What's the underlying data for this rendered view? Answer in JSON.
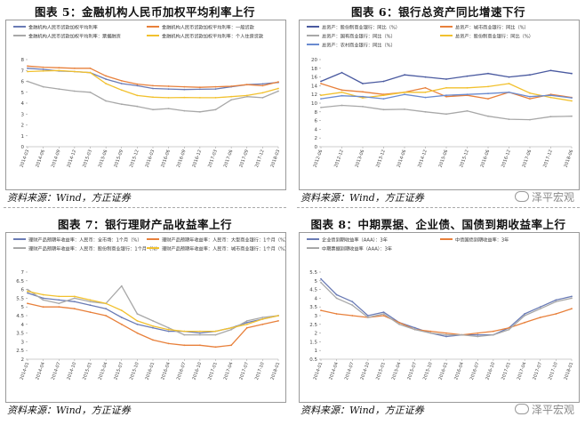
{
  "source_label": "资料来源：Wind，方正证券",
  "watermark": "泽平宏观",
  "chart_data": [
    {
      "type": "line",
      "title": "图表 5：金融机构人民币加权平均利率上行",
      "ylim": [
        0,
        8
      ],
      "yticks": [
        0,
        1,
        2,
        3,
        4,
        5,
        6,
        7,
        8
      ],
      "x": [
        "2014-03",
        "2014-06",
        "2014-09",
        "2014-12",
        "2015-03",
        "2015-06",
        "2015-09",
        "2015-12",
        "2016-03",
        "2016-06",
        "2016-09",
        "2016-12",
        "2017-03",
        "2017-06",
        "2017-09",
        "2017-12",
        "2018-03"
      ],
      "legend_position": "top",
      "grid": false,
      "series": [
        {
          "name": "金融机构人民币贷款加权平均利率",
          "color": "#6a7bb5",
          "values": [
            7.2,
            7.1,
            6.95,
            6.9,
            6.8,
            6.2,
            5.8,
            5.6,
            5.35,
            5.3,
            5.25,
            5.27,
            5.3,
            5.5,
            5.7,
            5.76,
            5.9
          ]
        },
        {
          "name": "金融机构人民币贷款加权平均利率：一般贷款",
          "color": "#e8803b",
          "values": [
            7.4,
            7.3,
            7.25,
            7.2,
            7.2,
            6.5,
            6.05,
            5.75,
            5.6,
            5.55,
            5.5,
            5.45,
            5.5,
            5.55,
            5.7,
            5.6,
            5.95
          ]
        },
        {
          "name": "金融机构人民币贷款加权平均利率：票据融资",
          "color": "#a8a8a8",
          "values": [
            6.0,
            5.5,
            5.3,
            5.1,
            5.0,
            4.2,
            3.9,
            3.7,
            3.4,
            3.5,
            3.3,
            3.2,
            3.4,
            4.3,
            4.6,
            4.5,
            5.1
          ]
        },
        {
          "name": "金融机构人民币贷款加权平均利率：个人住房贷款",
          "color": "#f2c12e",
          "values": [
            6.9,
            6.95,
            7.0,
            6.9,
            6.8,
            5.8,
            5.2,
            4.7,
            4.55,
            4.5,
            4.52,
            4.5,
            4.5,
            4.6,
            4.7,
            4.95,
            5.35
          ]
        }
      ]
    },
    {
      "type": "line",
      "title": "图表 6：银行总资产同比增速下行",
      "ylim": [
        0,
        20
      ],
      "yticks": [
        0,
        2,
        4,
        6,
        8,
        10,
        12,
        14,
        16,
        18,
        20
      ],
      "x": [
        "2012-06",
        "2012-12",
        "2013-06",
        "2013-12",
        "2014-06",
        "2014-12",
        "2015-06",
        "2015-12",
        "2016-06",
        "2016-12",
        "2017-06",
        "2017-12",
        "2018-06"
      ],
      "legend_position": "top",
      "grid": false,
      "series": [
        {
          "name": "总资产：股份制商业银行：同比（%）",
          "color": "#4a5aa0",
          "values": [
            15.0,
            17.0,
            14.5,
            15.0,
            16.5,
            16.0,
            15.5,
            16.2,
            16.8,
            16.0,
            16.5,
            17.5,
            16.8
          ]
        },
        {
          "name": "总资产：城市商业银行：同比（%）",
          "color": "#e8803b",
          "values": [
            14.5,
            13.0,
            12.6,
            12.0,
            12.5,
            13.5,
            11.5,
            11.8,
            11.0,
            12.5,
            11.0,
            12.0,
            11.3
          ]
        },
        {
          "name": "总资产：国有商业银行：同比（%）",
          "color": "#a8a8a8",
          "values": [
            9.0,
            9.5,
            9.2,
            8.5,
            8.6,
            8.0,
            7.5,
            8.2,
            7.0,
            6.3,
            6.2,
            6.9,
            7.0
          ]
        },
        {
          "name": "总资产：股份制商业银行：同比（%）",
          "color": "#f2c12e",
          "values": [
            11.8,
            12.5,
            11.2,
            11.8,
            12.5,
            12.5,
            13.5,
            13.5,
            13.8,
            14.5,
            12.3,
            11.3,
            10.5
          ]
        },
        {
          "name": "总资产：农村商业银行：同比（%）",
          "color": "#6a8bd0",
          "values": [
            11.0,
            11.7,
            11.5,
            11.0,
            12.0,
            11.3,
            11.8,
            12.0,
            12.2,
            12.5,
            11.5,
            11.8,
            11.2
          ]
        }
      ]
    },
    {
      "type": "line",
      "title": "图表 7：银行理财产品收益率上行",
      "ylim": [
        2.0,
        7.0
      ],
      "yticks": [
        2.0,
        2.5,
        3.0,
        3.5,
        4.0,
        4.5,
        5.0,
        5.5,
        6.0,
        6.5,
        7.0
      ],
      "x": [
        "2014-01",
        "2014-04",
        "2014-07",
        "2014-10",
        "2015-01",
        "2015-04",
        "2015-07",
        "2015-10",
        "2016-01",
        "2016-04",
        "2016-07",
        "2016-10",
        "2017-01",
        "2017-04",
        "2017-07",
        "2017-10",
        "2018-01"
      ],
      "legend_position": "top",
      "grid": false,
      "series": [
        {
          "name": "理财产品预期年收益率：人民币：全市场：1个月（%）",
          "color": "#6a7bb5",
          "values": [
            5.8,
            5.5,
            5.4,
            5.3,
            5.1,
            4.9,
            4.4,
            4.0,
            3.8,
            3.6,
            3.6,
            3.5,
            3.6,
            3.8,
            4.1,
            4.3,
            4.5
          ]
        },
        {
          "name": "理财产品预期年收益率：人民币：大型商业银行：1个月（%）",
          "color": "#e8803b",
          "values": [
            5.2,
            5.0,
            5.0,
            4.9,
            4.7,
            4.5,
            4.0,
            3.5,
            3.1,
            2.9,
            2.8,
            2.8,
            2.7,
            2.8,
            3.8,
            4.0,
            4.2
          ]
        },
        {
          "name": "理财产品预期年收益率：人民币：股份制商业银行：1个月（%）",
          "color": "#a8a8a8",
          "values": [
            6.0,
            5.4,
            5.2,
            5.5,
            5.3,
            5.2,
            6.2,
            4.6,
            4.2,
            3.8,
            3.4,
            3.4,
            3.4,
            3.7,
            4.2,
            4.4,
            4.5
          ]
        },
        {
          "name": "理财产品预期年收益率：人民币：城市商业银行：1个月（%）",
          "color": "#f2c12e",
          "values": [
            5.9,
            5.7,
            5.6,
            5.6,
            5.4,
            5.2,
            4.8,
            4.2,
            3.9,
            3.7,
            3.6,
            3.6,
            3.6,
            3.8,
            4.0,
            4.3,
            4.5
          ]
        }
      ]
    },
    {
      "type": "line",
      "title": "图表 8：中期票据、企业债、国债到期收益率上行",
      "ylim": [
        0.5,
        5.5
      ],
      "yticks": [
        0.5,
        1.0,
        1.5,
        2.0,
        2.5,
        3.0,
        3.5,
        4.0,
        4.5,
        5.0,
        5.5
      ],
      "x": [
        "2014-01",
        "2014-04",
        "2014-07",
        "2014-10",
        "2015-01",
        "2015-04",
        "2015-07",
        "2015-10",
        "2016-01",
        "2016-04",
        "2016-07",
        "2016-10",
        "2017-01",
        "2017-04",
        "2017-07",
        "2017-10",
        "2018-01"
      ],
      "legend_position": "top",
      "grid": false,
      "series": [
        {
          "name": "企业债到期收益率（AAA）：3年",
          "color": "#6a7bb5",
          "values": [
            5.1,
            4.2,
            3.8,
            3.0,
            3.2,
            2.6,
            2.3,
            2.0,
            1.8,
            1.9,
            1.9,
            1.9,
            2.3,
            3.1,
            3.5,
            3.9,
            4.1
          ]
        },
        {
          "name": "中债国债到期收益率：3年",
          "color": "#e8803b",
          "values": [
            3.3,
            3.1,
            3.0,
            2.9,
            3.0,
            2.6,
            2.2,
            2.1,
            2.0,
            1.9,
            2.0,
            2.1,
            2.3,
            2.6,
            2.9,
            3.1,
            3.4
          ]
        },
        {
          "name": "中期票据到期收益率（AAA）：3年",
          "color": "#a8a8a8",
          "values": [
            4.9,
            4.0,
            3.6,
            2.9,
            3.1,
            2.5,
            2.2,
            2.0,
            1.9,
            1.9,
            1.8,
            1.9,
            2.2,
            3.0,
            3.4,
            3.8,
            4.0
          ]
        }
      ]
    }
  ]
}
